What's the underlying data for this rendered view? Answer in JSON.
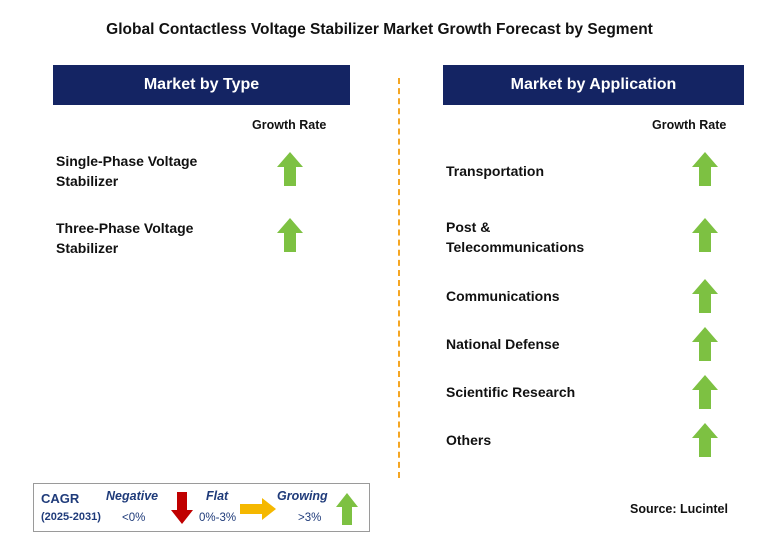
{
  "title": "Global Contactless Voltage Stabilizer Market Growth Forecast by Segment",
  "type_panel": {
    "header": "Market by Type",
    "column_label": "Growth Rate",
    "items": [
      {
        "label_line1": "Single-Phase Voltage",
        "label_line2": "Stabilizer",
        "trend": "growing"
      },
      {
        "label_line1": "Three-Phase Voltage",
        "label_line2": "Stabilizer",
        "trend": "growing"
      }
    ]
  },
  "application_panel": {
    "header": "Market by Application",
    "column_label": "Growth Rate",
    "items": [
      {
        "label_line1": "Transportation",
        "label_line2": "",
        "trend": "growing"
      },
      {
        "label_line1": "Post &",
        "label_line2": "Telecommunications",
        "trend": "growing"
      },
      {
        "label_line1": "Communications",
        "label_line2": "",
        "trend": "growing"
      },
      {
        "label_line1": "National Defense",
        "label_line2": "",
        "trend": "growing"
      },
      {
        "label_line1": "Scientific Research",
        "label_line2": "",
        "trend": "growing"
      },
      {
        "label_line1": "Others",
        "label_line2": "",
        "trend": "growing"
      }
    ]
  },
  "legend": {
    "cagr_label": "CAGR",
    "period": "(2025-2031)",
    "negative_label": "Negative",
    "negative_range": "<0%",
    "flat_label": "Flat",
    "flat_range": "0%-3%",
    "growing_label": "Growing",
    "growing_range": ">3%"
  },
  "source": "Source: Lucintel",
  "colors": {
    "header_bg": "#142463",
    "growing": "#7dc142",
    "negative": "#c00000",
    "flat": "#f5b800",
    "divider": "#f5a623",
    "legend_text": "#1f3b7a"
  }
}
